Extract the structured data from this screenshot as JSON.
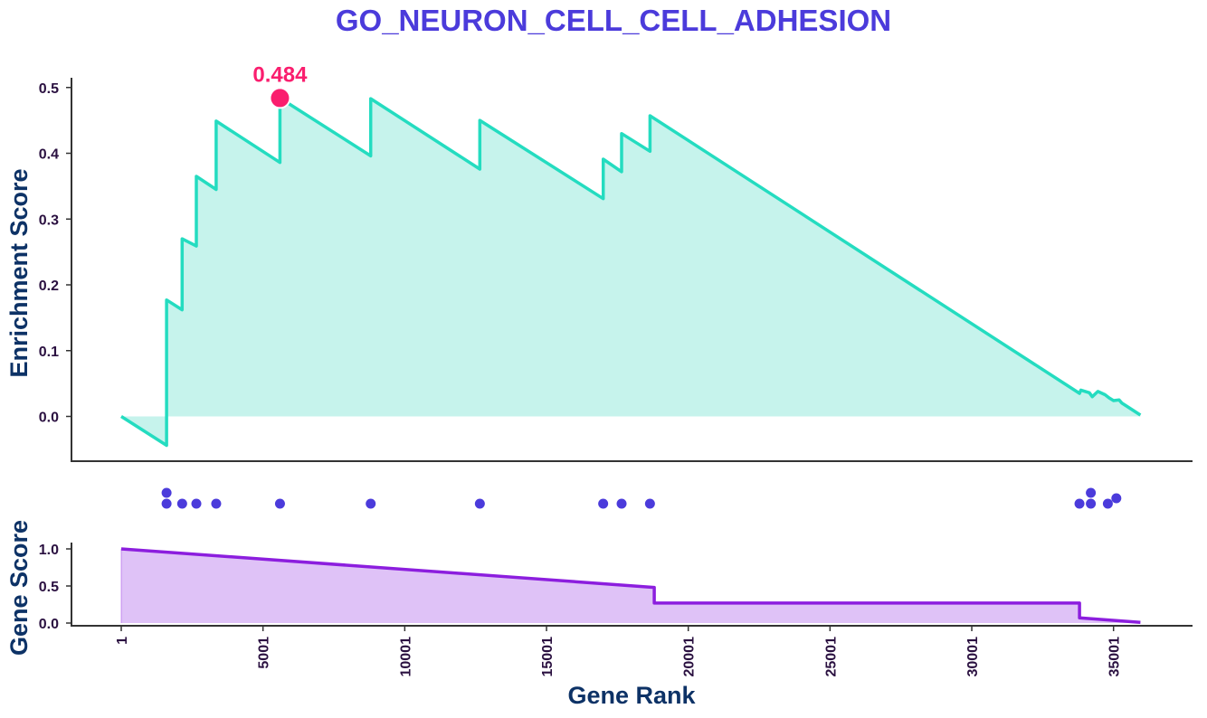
{
  "chart_data": [
    {
      "type": "line",
      "title": "GO_NEURON_CELL_CELL_ADHESION",
      "xlabel": "",
      "ylabel": "Enrichment Score",
      "xlim": [
        1,
        36000
      ],
      "ylim": [
        -0.07,
        0.51
      ],
      "yticks": [
        "0.0",
        "0.1",
        "0.2",
        "0.3",
        "0.4",
        "0.5"
      ],
      "area_fill": true,
      "grid": false,
      "peak": {
        "x": 5600,
        "y": 0.484,
        "label": "0.484"
      },
      "series": [
        {
          "x": [
            1,
            1600,
            1600,
            1600,
            2150,
            2150,
            2650,
            2650,
            3350,
            3350,
            5600,
            5600,
            8800,
            8800,
            12650,
            12650,
            17000,
            17000,
            17650,
            17650,
            18650,
            18650,
            33800,
            33850,
            34150,
            34250,
            34450,
            34700,
            34850,
            35000,
            35200,
            35300,
            35450,
            35950
          ],
          "y": [
            0.0,
            -0.044,
            0.065,
            0.177,
            0.162,
            0.27,
            0.259,
            0.365,
            0.345,
            0.449,
            0.386,
            0.484,
            0.396,
            0.483,
            0.376,
            0.45,
            0.331,
            0.391,
            0.372,
            0.43,
            0.403,
            0.457,
            0.035,
            0.04,
            0.036,
            0.03,
            0.038,
            0.033,
            0.028,
            0.024,
            0.025,
            0.02,
            0.016,
            0.002
          ]
        }
      ]
    },
    {
      "type": "scatter",
      "xlim": [
        1,
        36000
      ],
      "points": [
        {
          "x": 1600,
          "level": 2
        },
        {
          "x": 1600,
          "level": 1
        },
        {
          "x": 2150,
          "level": 1
        },
        {
          "x": 2650,
          "level": 1
        },
        {
          "x": 3350,
          "level": 1
        },
        {
          "x": 5600,
          "level": 1
        },
        {
          "x": 8800,
          "level": 1
        },
        {
          "x": 12650,
          "level": 1
        },
        {
          "x": 17000,
          "level": 1
        },
        {
          "x": 17650,
          "level": 1
        },
        {
          "x": 18650,
          "level": 1
        },
        {
          "x": 33800,
          "level": 1
        },
        {
          "x": 34200,
          "level": 1
        },
        {
          "x": 34200,
          "level": 2
        },
        {
          "x": 34800,
          "level": 1
        },
        {
          "x": 35100,
          "level": 1.5
        }
      ]
    },
    {
      "type": "area",
      "xlabel": "Gene Rank",
      "ylabel": "Gene Score",
      "xlim": [
        1,
        36000
      ],
      "ylim": [
        0,
        1.0
      ],
      "yticks": [
        "0.0",
        "0.5",
        "1.0"
      ],
      "xticks": [
        "1",
        "5001",
        "10001",
        "15001",
        "20001",
        "25001",
        "30001",
        "35001"
      ],
      "series": [
        {
          "x": [
            1,
            18800,
            18800,
            33800,
            33800,
            35950
          ],
          "y": [
            1.0,
            0.48,
            0.27,
            0.27,
            0.07,
            0.01
          ]
        }
      ]
    }
  ],
  "colors": {
    "title": "#4b3bdb",
    "axis_title": "#0d3266",
    "tick": "#2a1040",
    "es_line": "#24dcc0",
    "es_fill": "#c6f3ec",
    "peak": "#fa1e6e",
    "hits": "#4b3bdb",
    "gene_line": "#8c1ede",
    "gene_fill": "#dfc2f7"
  }
}
